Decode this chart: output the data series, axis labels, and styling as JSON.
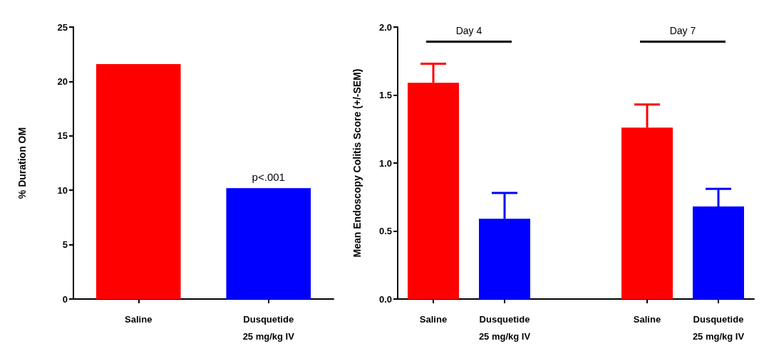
{
  "chart_data": [
    {
      "type": "bar",
      "ylabel": "% Duration OM",
      "categories": [
        "Saline",
        "Dusquetide\n25 mg/kg IV"
      ],
      "values": [
        21.6,
        10.2
      ],
      "colors": [
        "#ff0000",
        "#0000ff"
      ],
      "ylim": [
        0,
        25
      ],
      "yticks": [
        0,
        5,
        10,
        15,
        20,
        25
      ],
      "grid": false,
      "annotations": [
        {
          "text": "p<.001",
          "x": "Dusquetide\n25 mg/kg IV",
          "y": 10.2
        }
      ]
    },
    {
      "type": "bar",
      "ylabel": "Mean Endoscopy Colitis Score (+/-SEM)",
      "categories": [
        "Saline",
        "Dusquetide\n25 mg/kg IV",
        null,
        "Saline",
        "Dusquetide\n25 mg/kg IV"
      ],
      "values": [
        1.59,
        0.59,
        null,
        1.26,
        0.68
      ],
      "colors": [
        "#ff0000",
        "#0000ff",
        null,
        "#ff0000",
        "#0000ff"
      ],
      "errors": [
        [
          1.59,
          1.73
        ],
        [
          0.59,
          0.78
        ],
        null,
        [
          1.26,
          1.43
        ],
        [
          0.68,
          0.81
        ]
      ],
      "ylim": [
        0,
        2
      ],
      "yticks": [
        {
          "value": 0,
          "label": "0.0"
        },
        {
          "value": 0.5,
          "label": "0.5"
        },
        {
          "value": 1,
          "label": "1.0"
        },
        {
          "value": 1.5,
          "label": "1.5"
        },
        {
          "value": 2,
          "label": "2.0"
        }
      ],
      "grid": false,
      "annotations": [
        "Day 4",
        "Day 7"
      ]
    }
  ]
}
